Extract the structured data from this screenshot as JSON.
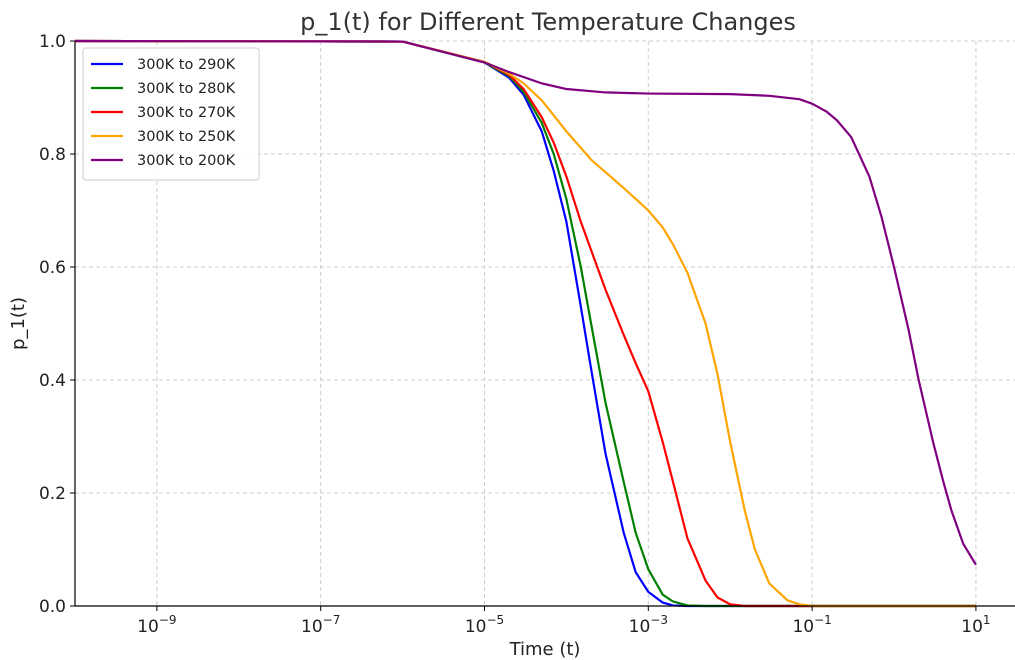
{
  "chart_data": {
    "type": "line",
    "title": "p_1(t) for Different Temperature Changes",
    "xlabel": "Time (t)",
    "ylabel": "p_1(t)",
    "xscale": "log",
    "xlim": [
      1e-10,
      30
    ],
    "ylim": [
      0,
      1
    ],
    "x_ticks": [
      {
        "exp": -9,
        "base": "10",
        "sup": "−9"
      },
      {
        "exp": -7,
        "base": "10",
        "sup": "−7"
      },
      {
        "exp": -5,
        "base": "10",
        "sup": "−5"
      },
      {
        "exp": -3,
        "base": "10",
        "sup": "−3"
      },
      {
        "exp": -1,
        "base": "10",
        "sup": "−1"
      },
      {
        "exp": 1,
        "base": "10",
        "sup": "1"
      }
    ],
    "y_ticks": [
      "0.0",
      "0.2",
      "0.4",
      "0.6",
      "0.8",
      "1.0"
    ],
    "grid": true,
    "legend_position": "top-left",
    "series": [
      {
        "name": "300K to 290K",
        "color": "#0000ff",
        "points": [
          [
            1e-10,
            1.0
          ],
          [
            1e-06,
            0.999
          ],
          [
            1e-05,
            0.962
          ],
          [
            2e-05,
            0.935
          ],
          [
            3e-05,
            0.905
          ],
          [
            5e-05,
            0.84
          ],
          [
            7e-05,
            0.77
          ],
          [
            0.0001,
            0.68
          ],
          [
            0.00015,
            0.53
          ],
          [
            0.0002,
            0.42
          ],
          [
            0.0003,
            0.27
          ],
          [
            0.0005,
            0.13
          ],
          [
            0.0007,
            0.06
          ],
          [
            0.001,
            0.025
          ],
          [
            0.0015,
            0.006
          ],
          [
            0.002,
            0.001
          ],
          [
            0.003,
            0.0
          ],
          [
            10,
            0.0
          ]
        ]
      },
      {
        "name": "300K to 280K",
        "color": "#008000",
        "points": [
          [
            1e-10,
            1.0
          ],
          [
            1e-06,
            0.999
          ],
          [
            1e-05,
            0.962
          ],
          [
            2e-05,
            0.938
          ],
          [
            3e-05,
            0.91
          ],
          [
            5e-05,
            0.855
          ],
          [
            7e-05,
            0.8
          ],
          [
            0.0001,
            0.72
          ],
          [
            0.00015,
            0.6
          ],
          [
            0.0002,
            0.5
          ],
          [
            0.0003,
            0.36
          ],
          [
            0.0005,
            0.22
          ],
          [
            0.0007,
            0.13
          ],
          [
            0.001,
            0.065
          ],
          [
            0.0015,
            0.02
          ],
          [
            0.002,
            0.008
          ],
          [
            0.003,
            0.001
          ],
          [
            0.005,
            0.0
          ],
          [
            10,
            0.0
          ]
        ]
      },
      {
        "name": "300K to 270K",
        "color": "#ff0000",
        "points": [
          [
            1e-10,
            1.0
          ],
          [
            1e-06,
            0.999
          ],
          [
            1e-05,
            0.963
          ],
          [
            2e-05,
            0.94
          ],
          [
            3e-05,
            0.915
          ],
          [
            5e-05,
            0.865
          ],
          [
            7e-05,
            0.82
          ],
          [
            0.0001,
            0.76
          ],
          [
            0.00015,
            0.68
          ],
          [
            0.0002,
            0.63
          ],
          [
            0.0003,
            0.56
          ],
          [
            0.0005,
            0.48
          ],
          [
            0.0007,
            0.43
          ],
          [
            0.001,
            0.38
          ],
          [
            0.0015,
            0.29
          ],
          [
            0.002,
            0.22
          ],
          [
            0.003,
            0.12
          ],
          [
            0.005,
            0.045
          ],
          [
            0.007,
            0.015
          ],
          [
            0.01,
            0.003
          ],
          [
            0.015,
            0.0
          ],
          [
            10,
            0.0
          ]
        ]
      },
      {
        "name": "300K to 250K",
        "color": "#ffa500",
        "points": [
          [
            1e-10,
            1.0
          ],
          [
            1e-06,
            0.999
          ],
          [
            1e-05,
            0.963
          ],
          [
            2e-05,
            0.942
          ],
          [
            3e-05,
            0.925
          ],
          [
            5e-05,
            0.895
          ],
          [
            0.0001,
            0.84
          ],
          [
            0.0002,
            0.79
          ],
          [
            0.0005,
            0.74
          ],
          [
            0.001,
            0.7
          ],
          [
            0.0015,
            0.67
          ],
          [
            0.002,
            0.64
          ],
          [
            0.003,
            0.59
          ],
          [
            0.005,
            0.5
          ],
          [
            0.007,
            0.41
          ],
          [
            0.01,
            0.29
          ],
          [
            0.015,
            0.17
          ],
          [
            0.02,
            0.1
          ],
          [
            0.03,
            0.04
          ],
          [
            0.05,
            0.01
          ],
          [
            0.07,
            0.003
          ],
          [
            0.1,
            0.0
          ],
          [
            10,
            0.0
          ]
        ]
      },
      {
        "name": "300K to 200K",
        "color": "#800080",
        "points": [
          [
            1e-10,
            1.0
          ],
          [
            1e-06,
            0.999
          ],
          [
            1e-05,
            0.962
          ],
          [
            2e-05,
            0.945
          ],
          [
            5e-05,
            0.925
          ],
          [
            0.0001,
            0.915
          ],
          [
            0.0003,
            0.909
          ],
          [
            0.001,
            0.907
          ],
          [
            0.01,
            0.906
          ],
          [
            0.03,
            0.903
          ],
          [
            0.07,
            0.897
          ],
          [
            0.1,
            0.889
          ],
          [
            0.15,
            0.875
          ],
          [
            0.2,
            0.86
          ],
          [
            0.3,
            0.83
          ],
          [
            0.5,
            0.76
          ],
          [
            0.7,
            0.69
          ],
          [
            1,
            0.6
          ],
          [
            1.5,
            0.49
          ],
          [
            2,
            0.4
          ],
          [
            3,
            0.29
          ],
          [
            4,
            0.22
          ],
          [
            5,
            0.17
          ],
          [
            7,
            0.11
          ],
          [
            10,
            0.073
          ]
        ]
      }
    ]
  }
}
